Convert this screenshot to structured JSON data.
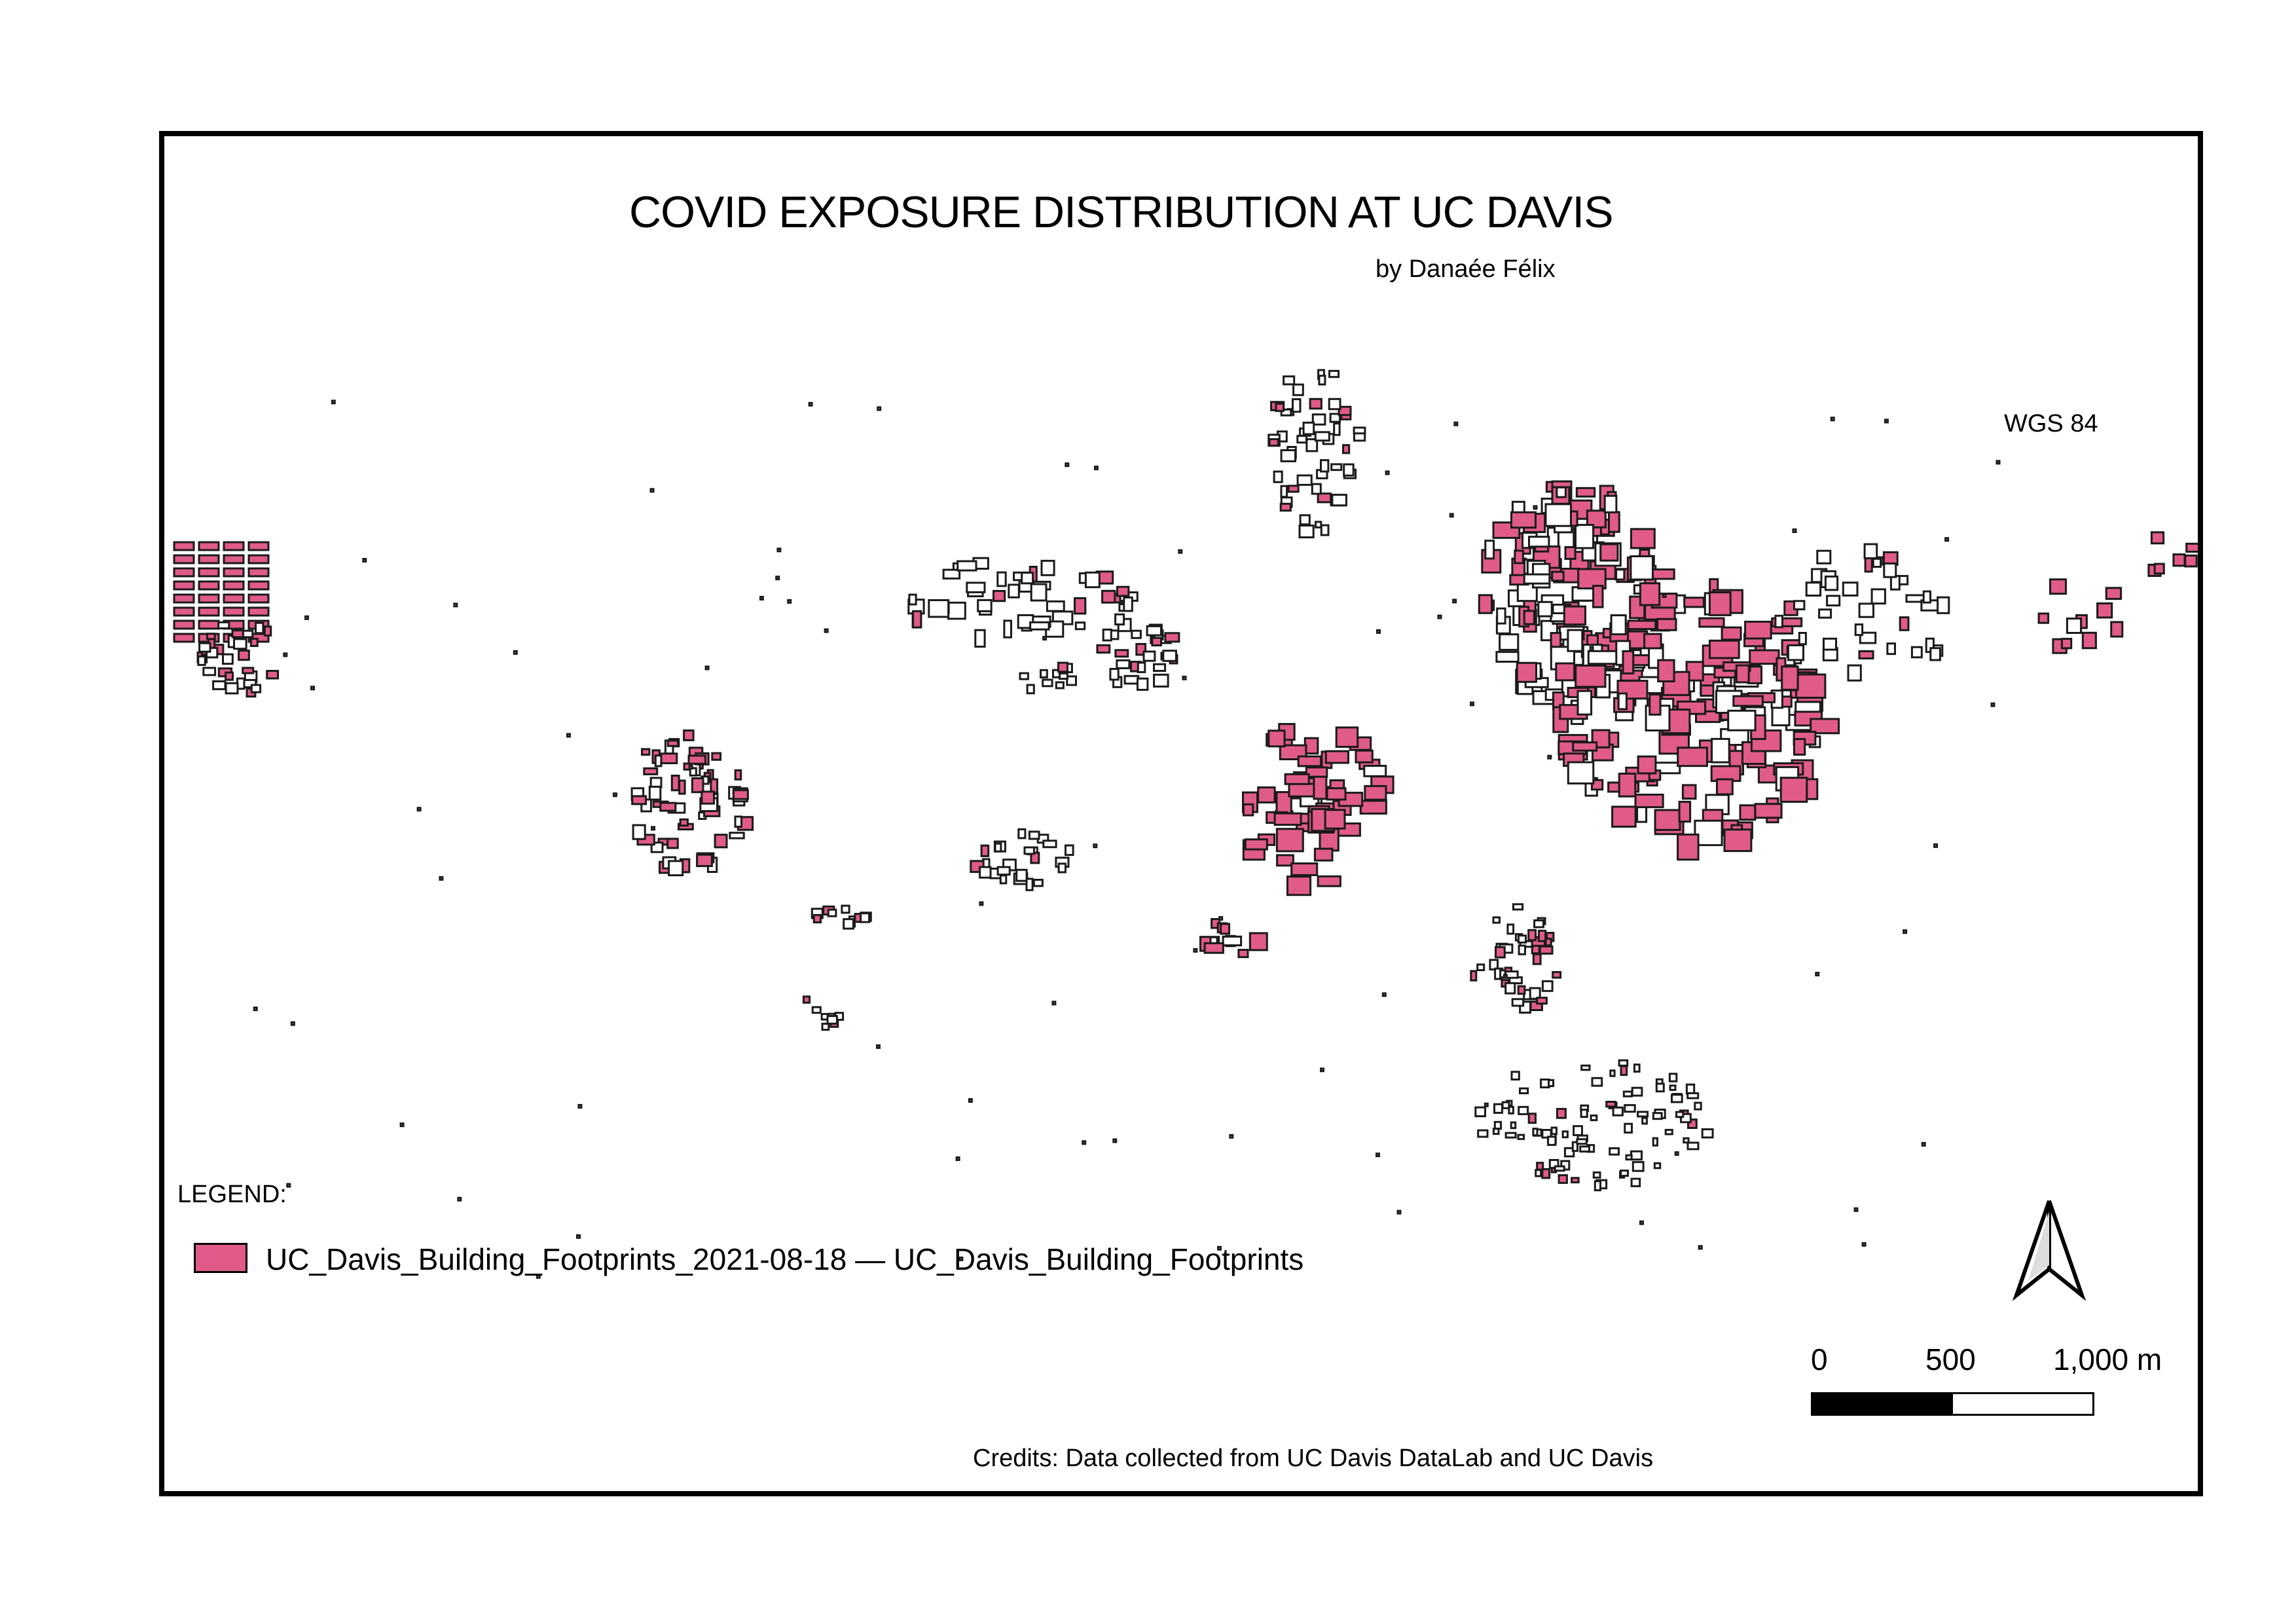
{
  "map": {
    "title": "COVID EXPOSURE DISTRIBUTION AT UC DAVIS",
    "author": "by Danaée Félix",
    "crs": "WGS 84",
    "credits": "Credits: Data collected from UC Davis DataLab and UC Davis"
  },
  "legend": {
    "heading": "LEGEND:",
    "items": [
      {
        "label": "UC_Davis_Building_Footprints_2021-08-18 — UC_Davis_Building_Footprints",
        "color": "#e05b89"
      }
    ]
  },
  "scale_bar": {
    "labels": [
      "0",
      "500",
      "1,000 m"
    ]
  },
  "north_arrow": {
    "icon": "north-arrow-icon"
  },
  "colors": {
    "building_fill": "#e05b89",
    "building_stroke": "#1a1a1a",
    "frame": "#000000"
  }
}
